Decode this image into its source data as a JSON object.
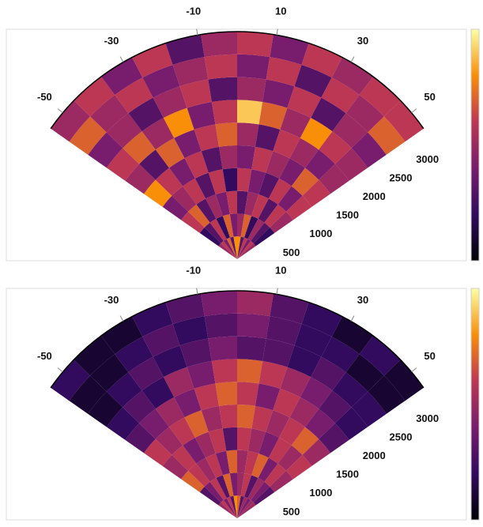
{
  "chart_data": [
    {
      "type": "polar_heatmap",
      "thetalim": [
        -55,
        55
      ],
      "thetaticks": [
        -50,
        -30,
        -10,
        10,
        30,
        50
      ],
      "rlim": [
        0,
        3500
      ],
      "rticks": [
        500,
        1000,
        1500,
        2000,
        2500,
        3000
      ],
      "clim": [
        0,
        1
      ],
      "z": [
        [
          0.5,
          0.6,
          0.4,
          0.7,
          0.3,
          0.8,
          0.8,
          0.3,
          0.6,
          0.4,
          0.6,
          0.5
        ],
        [
          0.2,
          0.3,
          0.6,
          0.2,
          0.7,
          0.4,
          0.5,
          0.7,
          0.2,
          0.5,
          0.3,
          0.2
        ],
        [
          0.6,
          0.7,
          0.3,
          0.5,
          0.4,
          0.6,
          0.3,
          0.5,
          0.6,
          0.3,
          0.6,
          0.5
        ],
        [
          0.4,
          0.5,
          0.6,
          0.3,
          0.6,
          0.2,
          0.6,
          0.4,
          0.3,
          0.6,
          0.4,
          0.6
        ],
        [
          0.8,
          0.6,
          0.4,
          0.6,
          0.3,
          0.5,
          0.4,
          0.6,
          0.5,
          0.4,
          0.7,
          0.6
        ],
        [
          0.5,
          0.3,
          0.7,
          0.4,
          0.6,
          0.7,
          0.5,
          0.3,
          0.6,
          0.5,
          0.4,
          0.5
        ],
        [
          0.6,
          0.7,
          0.5,
          0.8,
          0.4,
          0.6,
          0.9,
          0.7,
          0.5,
          0.8,
          0.6,
          0.5
        ],
        [
          0.4,
          0.5,
          0.3,
          0.5,
          0.6,
          0.3,
          0.5,
          0.4,
          0.6,
          0.3,
          0.5,
          0.4
        ],
        [
          0.7,
          0.5,
          0.6,
          0.4,
          0.5,
          0.6,
          0.4,
          0.6,
          0.3,
          0.6,
          0.5,
          0.7
        ],
        [
          0.5,
          0.6,
          0.4,
          0.6,
          0.3,
          0.5,
          0.6,
          0.4,
          0.6,
          0.5,
          0.6,
          0.6
        ]
      ]
    },
    {
      "type": "polar_heatmap",
      "thetalim": [
        -55,
        55
      ],
      "thetaticks": [
        -50,
        -30,
        -10,
        10,
        30,
        50
      ],
      "rlim": [
        0,
        3500
      ],
      "rticks": [
        500,
        1000,
        1500,
        2000,
        2500,
        3000
      ],
      "clim": [
        0,
        1
      ],
      "z": [
        [
          0.5,
          0.6,
          0.4,
          0.6,
          0.3,
          0.8,
          0.7,
          0.3,
          0.5,
          0.4,
          0.5,
          0.5
        ],
        [
          0.3,
          0.4,
          0.6,
          0.3,
          0.7,
          0.4,
          0.5,
          0.6,
          0.3,
          0.5,
          0.4,
          0.3
        ],
        [
          0.7,
          0.6,
          0.5,
          0.6,
          0.4,
          0.7,
          0.5,
          0.6,
          0.7,
          0.4,
          0.6,
          0.5
        ],
        [
          0.5,
          0.6,
          0.4,
          0.5,
          0.6,
          0.3,
          0.6,
          0.5,
          0.4,
          0.6,
          0.5,
          0.6
        ],
        [
          0.6,
          0.5,
          0.6,
          0.7,
          0.5,
          0.6,
          0.7,
          0.6,
          0.5,
          0.6,
          0.7,
          0.5
        ],
        [
          0.3,
          0.4,
          0.5,
          0.4,
          0.6,
          0.7,
          0.6,
          0.4,
          0.6,
          0.5,
          0.4,
          0.3
        ],
        [
          0.2,
          0.3,
          0.2,
          0.5,
          0.4,
          0.6,
          0.7,
          0.6,
          0.5,
          0.4,
          0.3,
          0.2
        ],
        [
          0.1,
          0.2,
          0.3,
          0.2,
          0.3,
          0.4,
          0.3,
          0.3,
          0.2,
          0.3,
          0.2,
          0.2
        ],
        [
          0.1,
          0.1,
          0.2,
          0.3,
          0.2,
          0.3,
          0.4,
          0.3,
          0.2,
          0.2,
          0.1,
          0.1
        ],
        [
          0.2,
          0.1,
          0.1,
          0.2,
          0.3,
          0.4,
          0.5,
          0.3,
          0.2,
          0.1,
          0.2,
          0.1
        ]
      ]
    }
  ]
}
